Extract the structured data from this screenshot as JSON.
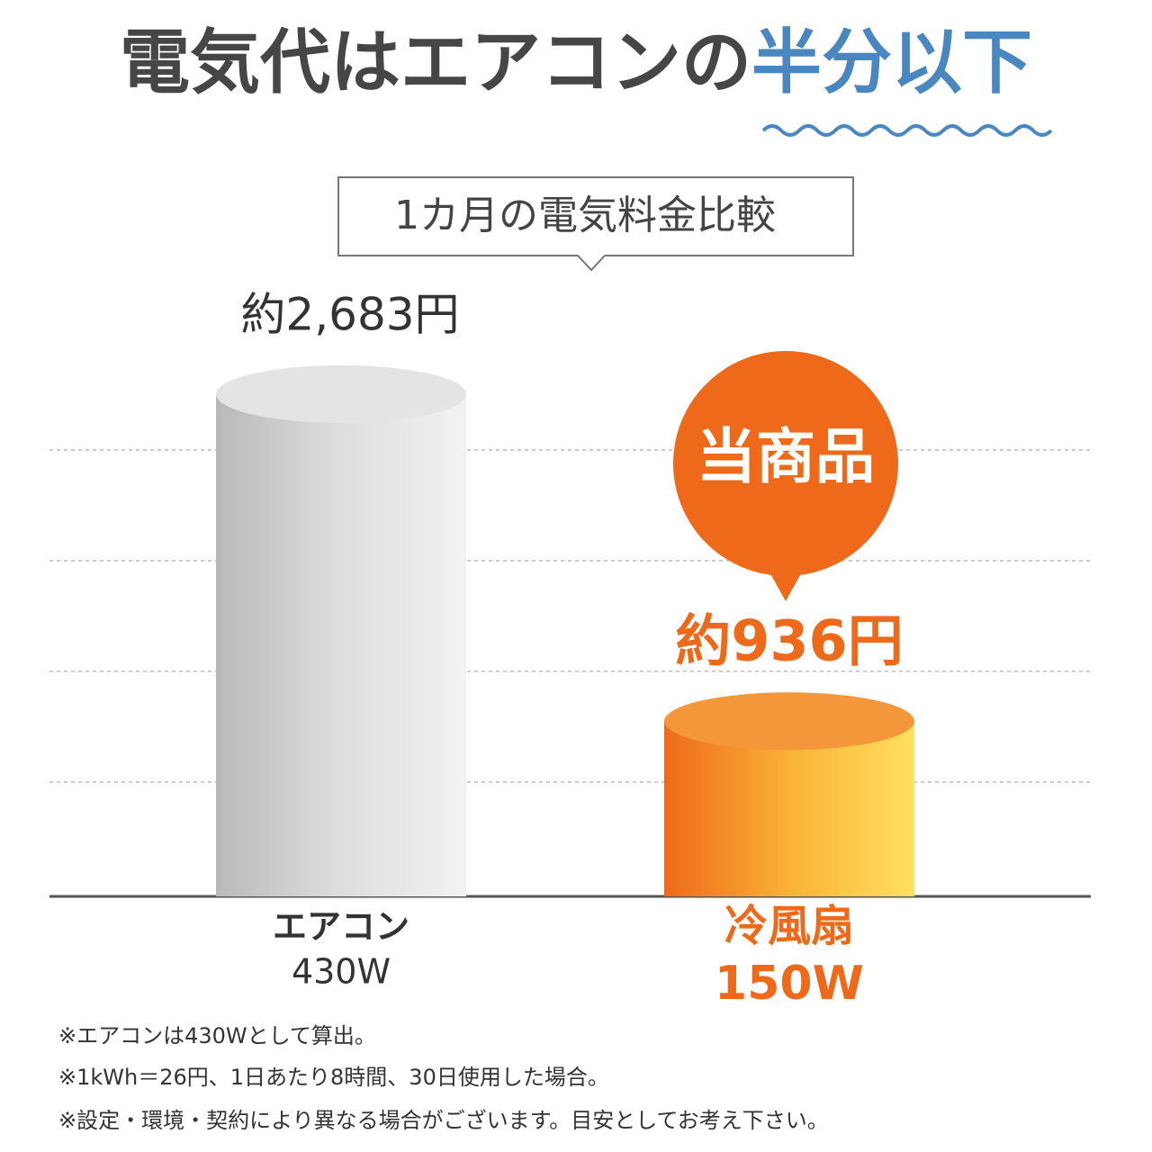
{
  "chart_data": {
    "type": "bar",
    "title_parts": [
      "電気代はエアコンの",
      "半分以下"
    ],
    "subtitle": "1カ月の電気料金比較",
    "badge": "当商品",
    "categories": [
      "エアコン",
      "冷風扇"
    ],
    "wattage_labels": [
      "430W",
      "150W"
    ],
    "values": [
      2683,
      936
    ],
    "value_labels": [
      "約2,683円",
      "約936円"
    ],
    "colors": [
      "#c8c8c8",
      "#f07a1e"
    ],
    "ylim": [
      0,
      3000
    ],
    "footnotes": [
      "※エアコンは430Wとして算出。",
      "※1kWh＝26円、1日あたり8時間、30日使用した場合。",
      "※設定・環境・契約により異なる場合がございます。目安としてお考え下さい。"
    ]
  }
}
